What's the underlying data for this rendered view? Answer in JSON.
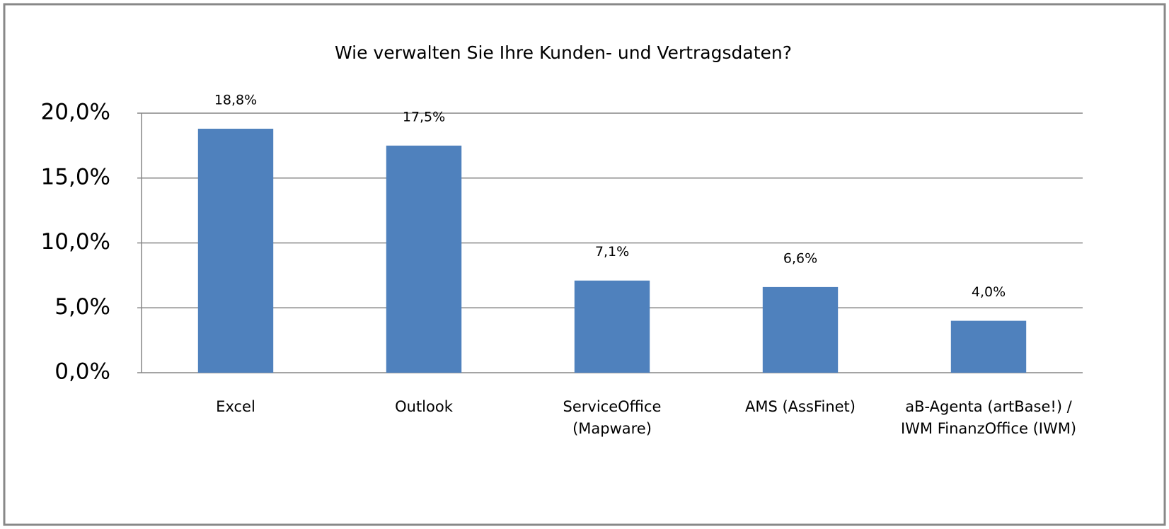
{
  "chart_data": {
    "type": "bar",
    "title": "Wie verwalten Sie Ihre Kunden- und Vertragsdaten?",
    "categories": [
      "Excel",
      "Outlook",
      "ServiceOffice (Mapware)",
      "AMS (AssFinet)",
      "aB-Agenta (artBase!) / IWM FinanzOffice (IWM)"
    ],
    "values": [
      18.8,
      17.5,
      7.1,
      6.6,
      4.0
    ],
    "value_labels": [
      "18,8%",
      "17,5%",
      "7,1%",
      "6,6%",
      "4,0%"
    ],
    "color": "#4f81bd",
    "ylim": [
      0,
      20
    ],
    "yticks": [
      {
        "value": 0,
        "label": "0,0%"
      },
      {
        "value": 5,
        "label": "5,0%"
      },
      {
        "value": 10,
        "label": "10,0%"
      },
      {
        "value": 15,
        "label": "15,0%"
      },
      {
        "value": 20,
        "label": "20,0%"
      }
    ],
    "grid": true
  }
}
